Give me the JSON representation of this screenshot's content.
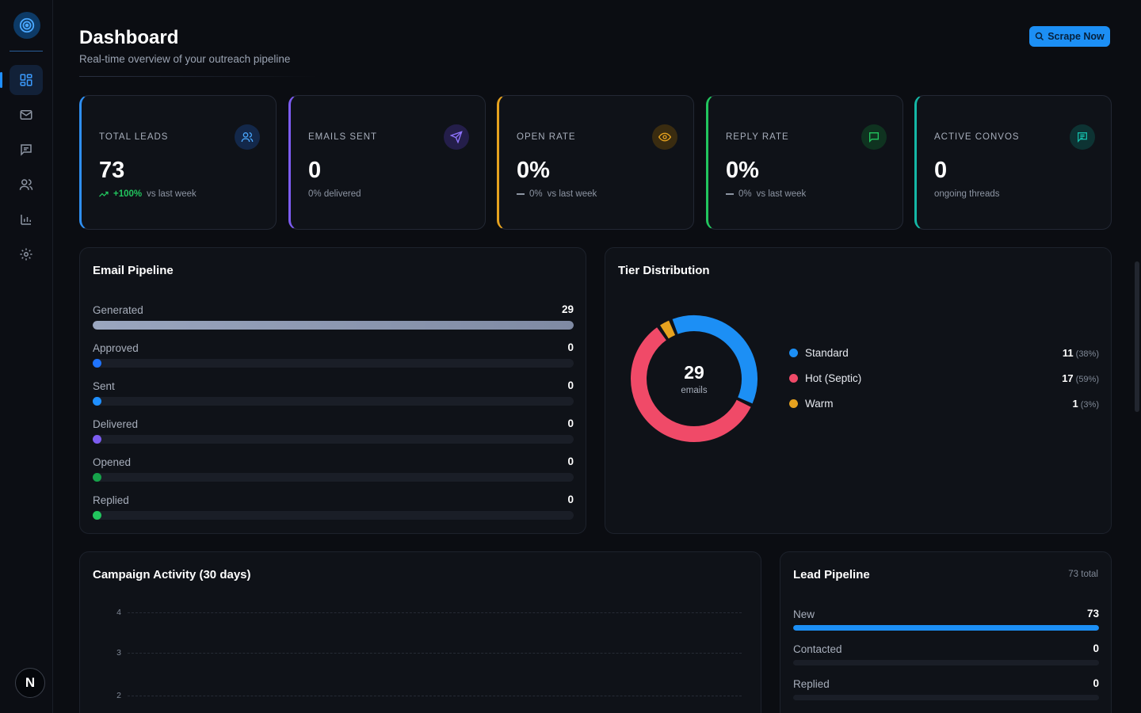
{
  "header": {
    "title": "Dashboard",
    "subtitle": "Real-time overview of your outreach pipeline",
    "scrape_label": "Scrape Now"
  },
  "sidebar": {
    "items": [
      {
        "icon": "dashboard-icon",
        "active": true
      },
      {
        "icon": "mail-icon",
        "active": false
      },
      {
        "icon": "chat-icon",
        "active": false
      },
      {
        "icon": "users-icon",
        "active": false
      },
      {
        "icon": "bar-chart-icon",
        "active": false
      },
      {
        "icon": "gear-icon",
        "active": false
      }
    ],
    "avatar_letter": "N"
  },
  "stats": [
    {
      "label": "TOTAL LEADS",
      "value": "73",
      "trend": "+100%",
      "sub": "vs last week",
      "accent": "#2f8ff2",
      "icon": "users-icon"
    },
    {
      "label": "EMAILS SENT",
      "value": "0",
      "sub": "0% delivered",
      "accent": "#7c5cf0",
      "icon": "send-icon"
    },
    {
      "label": "OPEN RATE",
      "value": "0%",
      "trend": "0%",
      "sub": "vs last week",
      "accent": "#e6a21f",
      "icon": "eye-icon"
    },
    {
      "label": "REPLY RATE",
      "value": "0%",
      "trend": "0%",
      "sub": "vs last week",
      "accent": "#22c55e",
      "icon": "message-icon"
    },
    {
      "label": "ACTIVE CONVOS",
      "value": "0",
      "sub": "ongoing threads",
      "accent": "#14b8a6",
      "icon": "chat-lines-icon"
    }
  ],
  "email_pipeline": {
    "title": "Email Pipeline",
    "rows": [
      {
        "name": "Generated",
        "value": "29",
        "fraction": 1.0,
        "color": "#7f8aa3"
      },
      {
        "name": "Approved",
        "value": "0",
        "fraction": 0,
        "color": "#1f74ff"
      },
      {
        "name": "Sent",
        "value": "0",
        "fraction": 0,
        "color": "#1f8fff"
      },
      {
        "name": "Delivered",
        "value": "0",
        "fraction": 0,
        "color": "#7c5cf0"
      },
      {
        "name": "Opened",
        "value": "0",
        "fraction": 0,
        "color": "#16a34a"
      },
      {
        "name": "Replied",
        "value": "0",
        "fraction": 0,
        "color": "#22c55e"
      }
    ]
  },
  "tier_distribution": {
    "title": "Tier Distribution",
    "center_value": "29",
    "center_label": "emails"
  },
  "chart_data": {
    "type": "pie",
    "categories": [
      "Standard",
      "Hot (Septic)",
      "Warm"
    ],
    "values": [
      11,
      17,
      1
    ],
    "percent_labels": [
      "(38%)",
      "(59%)",
      "(3%)"
    ],
    "colors": [
      "#1c8ff5",
      "#f04a68",
      "#e6a21f"
    ],
    "total": 29
  },
  "campaign_activity": {
    "title": "Campaign Activity (30 days)",
    "y_ticks": [
      "4",
      "3",
      "2"
    ]
  },
  "lead_pipeline": {
    "title": "Lead Pipeline",
    "total_label": "73 total",
    "rows": [
      {
        "name": "New",
        "value": "73",
        "fraction": 1.0,
        "color": "#1c8ff5"
      },
      {
        "name": "Contacted",
        "value": "0",
        "fraction": 0,
        "color": "#1c8ff5"
      },
      {
        "name": "Replied",
        "value": "0",
        "fraction": 0,
        "color": "#1c8ff5"
      }
    ]
  }
}
